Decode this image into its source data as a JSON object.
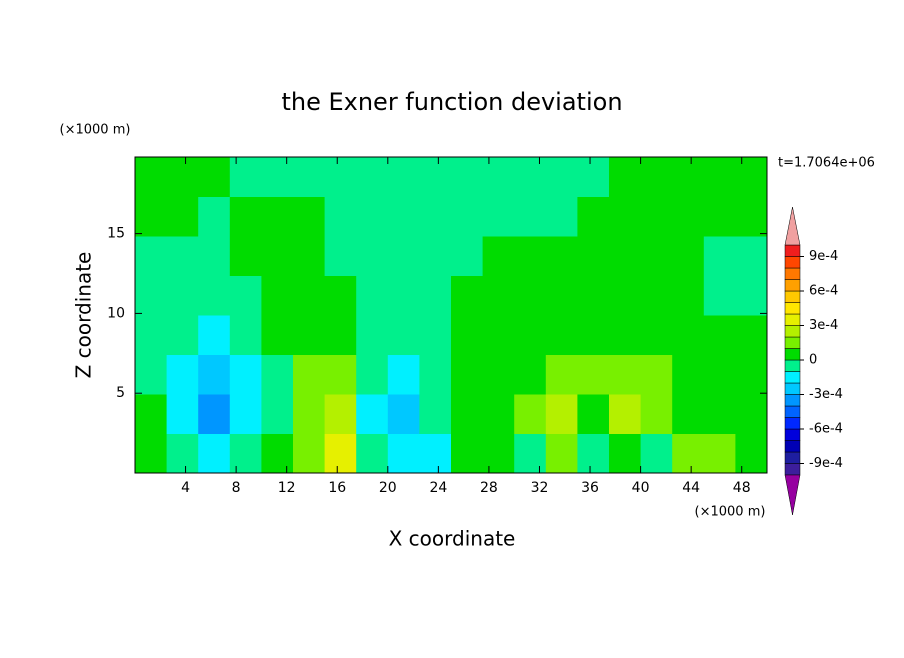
{
  "chart_data": {
    "type": "contour",
    "title": "the Exner function deviation",
    "xlabel": "X coordinate",
    "ylabel": "Z coordinate",
    "x_unit_label": "(×1000 m)",
    "y_unit_label": "(×1000 m)",
    "annotation": "t=1.7064e+06",
    "xlim": [
      0,
      50
    ],
    "ylim": [
      0,
      19.8
    ],
    "xticks": [
      4,
      8,
      12,
      16,
      20,
      24,
      28,
      32,
      36,
      40,
      44,
      48
    ],
    "yticks": [
      5,
      10,
      15
    ],
    "x": [
      1.25,
      3.75,
      6.25,
      8.75,
      11.25,
      13.75,
      16.25,
      18.75,
      21.25,
      23.75,
      26.25,
      28.75,
      31.25,
      33.75,
      36.25,
      38.75,
      41.25,
      43.75,
      46.25,
      48.75
    ],
    "y": [
      1.2375,
      3.7125,
      6.1875,
      8.6625,
      11.1375,
      13.6125,
      16.0875,
      18.5625
    ],
    "z": [
      [
        5e-05,
        -5e-05,
        -0.00015,
        -5e-05,
        5e-05,
        0.00015,
        0.00035,
        -5e-05,
        -0.00015,
        -0.00015,
        5e-05,
        5e-05,
        -5e-05,
        0.00015,
        -5e-05,
        5e-05,
        -5e-05,
        0.00015,
        0.00015,
        5e-05
      ],
      [
        5e-05,
        -0.00015,
        -0.00035,
        -0.00015,
        -5e-05,
        0.00015,
        0.00025,
        -0.00015,
        -0.00025,
        -5e-05,
        5e-05,
        5e-05,
        0.00015,
        0.00025,
        5e-05,
        0.00025,
        0.00015,
        5e-05,
        5e-05,
        5e-05
      ],
      [
        -5e-05,
        -0.00015,
        -0.00025,
        -0.00015,
        -5e-05,
        0.00015,
        0.00015,
        -5e-05,
        -0.00015,
        -5e-05,
        5e-05,
        5e-05,
        5e-05,
        0.00015,
        0.00015,
        0.00015,
        0.00015,
        5e-05,
        5e-05,
        5e-05
      ],
      [
        -5e-05,
        -5e-05,
        -0.00015,
        -5e-05,
        5e-05,
        5e-05,
        5e-05,
        -5e-05,
        -5e-05,
        -5e-05,
        5e-05,
        5e-05,
        5e-05,
        5e-05,
        5e-05,
        5e-05,
        5e-05,
        5e-05,
        5e-05,
        5e-05
      ],
      [
        -5e-05,
        -5e-05,
        -5e-05,
        -5e-05,
        5e-05,
        5e-05,
        5e-05,
        -5e-05,
        -5e-05,
        -5e-05,
        5e-05,
        5e-05,
        5e-05,
        5e-05,
        5e-05,
        5e-05,
        5e-05,
        5e-05,
        -5e-05,
        -5e-05
      ],
      [
        -5e-05,
        -5e-05,
        -5e-05,
        5e-05,
        5e-05,
        5e-05,
        -5e-05,
        -5e-05,
        -5e-05,
        -5e-05,
        -5e-05,
        5e-05,
        5e-05,
        5e-05,
        5e-05,
        5e-05,
        5e-05,
        5e-05,
        -5e-05,
        -5e-05
      ],
      [
        5e-05,
        5e-05,
        -5e-05,
        5e-05,
        5e-05,
        5e-05,
        -5e-05,
        -5e-05,
        -5e-05,
        -5e-05,
        -5e-05,
        -5e-05,
        -5e-05,
        -5e-05,
        5e-05,
        5e-05,
        5e-05,
        5e-05,
        5e-05,
        5e-05
      ],
      [
        5e-05,
        5e-05,
        5e-05,
        -5e-05,
        -5e-05,
        -5e-05,
        -5e-05,
        -5e-05,
        -5e-05,
        -5e-05,
        -5e-05,
        -5e-05,
        -5e-05,
        -5e-05,
        -5e-05,
        5e-05,
        5e-05,
        5e-05,
        5e-05,
        5e-05
      ]
    ],
    "colorbar": {
      "levels": [
        -0.001,
        -0.0009,
        -0.0008,
        -0.0007,
        -0.0006,
        -0.0005,
        -0.0004,
        -0.0003,
        -0.0002,
        -0.0001,
        0,
        0.0001,
        0.0002,
        0.0003,
        0.0004,
        0.0005,
        0.0006,
        0.0007,
        0.0008,
        0.0009,
        0.001
      ],
      "colors": [
        "#3c1e9c",
        "#1e1ea0",
        "#0000b4",
        "#0000dc",
        "#0028ff",
        "#0064ff",
        "#0096ff",
        "#00c8ff",
        "#00f0ff",
        "#00f08c",
        "#00dc00",
        "#78f000",
        "#b4f000",
        "#e6f000",
        "#ffe600",
        "#ffc800",
        "#ffa000",
        "#ff7800",
        "#ff4600",
        "#f01e1e"
      ],
      "under_color": "#9600a0",
      "over_color": "#f0a0a0",
      "ticks": [
        {
          "value": -0.0009,
          "label": "-9e-4"
        },
        {
          "value": -0.0006,
          "label": "-6e-4"
        },
        {
          "value": -0.0003,
          "label": "-3e-4"
        },
        0,
        {
          "value": 0.0003,
          "label": "3e-4"
        },
        {
          "value": 0.0006,
          "label": "6e-4"
        },
        {
          "value": 0.0009,
          "label": "9e-4"
        }
      ]
    }
  }
}
